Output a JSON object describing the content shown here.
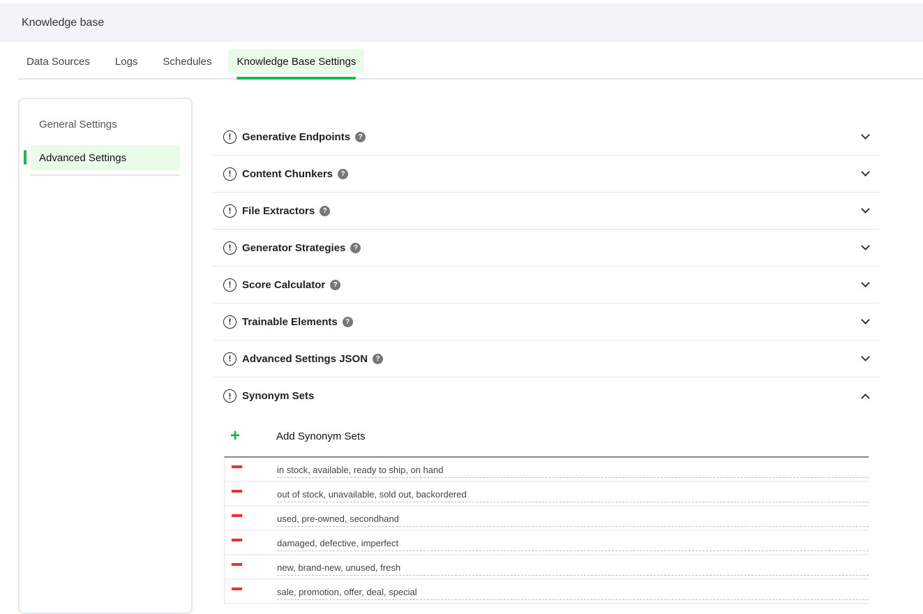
{
  "header": {
    "title": "Knowledge base"
  },
  "tabs": [
    {
      "label": "Data Sources"
    },
    {
      "label": "Logs"
    },
    {
      "label": "Schedules"
    },
    {
      "label": "Knowledge Base Settings",
      "active": true
    }
  ],
  "sidebar": {
    "items": [
      {
        "label": "General Settings"
      },
      {
        "label": "Advanced Settings",
        "active": true
      }
    ]
  },
  "sections": [
    {
      "title": "Generative Endpoints",
      "expanded": false
    },
    {
      "title": "Content Chunkers",
      "expanded": false
    },
    {
      "title": "File Extractors",
      "expanded": false
    },
    {
      "title": "Generator Strategies",
      "expanded": false
    },
    {
      "title": "Score Calculator",
      "expanded": false
    },
    {
      "title": "Trainable Elements",
      "expanded": false
    },
    {
      "title": "Advanced Settings JSON",
      "expanded": false
    },
    {
      "title": "Synonym Sets",
      "expanded": true
    }
  ],
  "synonyms": {
    "add_label": "Add Synonym Sets",
    "sets": [
      "in stock, available, ready to ship, on hand",
      "out of stock, unavailable, sold out, backordered",
      "used, pre-owned, secondhand",
      "damaged, defective, imperfect",
      "new, brand-new, unused, fresh",
      "sale, promotion, offer, deal, special"
    ]
  },
  "colors": {
    "accent": "#0fbf4f",
    "active_bg": "#ebfbe9",
    "remove": "#f0302e"
  }
}
